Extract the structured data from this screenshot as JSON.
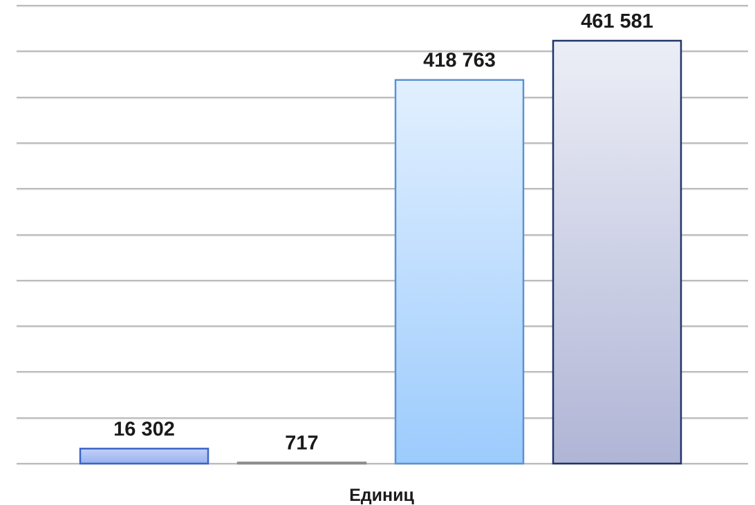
{
  "chart_data": {
    "type": "bar",
    "title": "",
    "xlabel": "Единиц",
    "ylabel": "",
    "categories": [
      "Единиц"
    ],
    "ylim": [
      0,
      500000
    ],
    "grid": true,
    "legend": "none",
    "series": [
      {
        "values": [
          16302
        ],
        "label": "16 302",
        "fill_top": "#c3d2f7",
        "fill_bottom": "#98b2f0",
        "stroke": "#3a64c8"
      },
      {
        "values": [
          717
        ],
        "label": "717",
        "fill_top": "#eeeeee",
        "fill_bottom": "#d8d8d8",
        "stroke": "#8c8c8c"
      },
      {
        "values": [
          418763
        ],
        "label": "418 763",
        "fill_top": "#e2f0fe",
        "fill_bottom": "#9ccbfd",
        "stroke": "#5b92d4"
      },
      {
        "values": [
          461581
        ],
        "label": "461 581",
        "fill_top": "#eceef6",
        "fill_bottom": "#b0b5d6",
        "stroke": "#1f3568"
      }
    ]
  }
}
